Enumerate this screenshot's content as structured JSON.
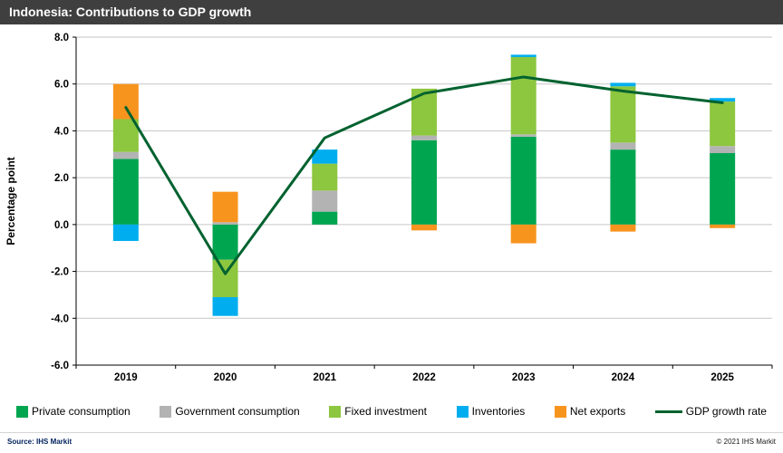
{
  "title_bar": {
    "title": "Indonesia: Contributions to GDP growth",
    "bg_color": "#3F3F3F",
    "text_color": "#FFFFFF"
  },
  "chart_data": {
    "type": "bar",
    "subtype": "stacked-bar-with-line",
    "title": "Indonesia: Contributions to GDP growth",
    "xlabel": "",
    "ylabel": "Percentage point",
    "ylim": [
      -6.0,
      8.0
    ],
    "ytick_step": 2.0,
    "ytick_labels": [
      "-6.0",
      "-4.0",
      "-2.0",
      "0.0",
      "2.0",
      "4.0",
      "6.0",
      "8.0"
    ],
    "grid": true,
    "legend_position": "bottom",
    "categories": [
      "2019",
      "2020",
      "2021",
      "2022",
      "2023",
      "2024",
      "2025"
    ],
    "series": [
      {
        "name": "Private consumption",
        "color": "#00A550",
        "values": [
          2.8,
          -1.5,
          0.55,
          3.6,
          3.75,
          3.2,
          3.05
        ]
      },
      {
        "name": "Government consumption",
        "color": "#B3B3B3",
        "values": [
          0.3,
          0.1,
          0.9,
          0.2,
          0.1,
          0.3,
          0.3
        ]
      },
      {
        "name": "Fixed investment",
        "color": "#8DC63F",
        "values": [
          1.4,
          -1.6,
          1.15,
          2.0,
          3.3,
          2.4,
          1.9
        ]
      },
      {
        "name": "Inventories",
        "color": "#00AEEF",
        "values": [
          -0.7,
          -0.8,
          0.6,
          0.0,
          0.1,
          0.15,
          0.15
        ]
      },
      {
        "name": "Net exports",
        "color": "#F7941E",
        "values": [
          1.5,
          1.3,
          0.0,
          -0.25,
          -0.8,
          -0.3,
          -0.15
        ]
      }
    ],
    "line_series": {
      "name": "GDP growth rate",
      "color": "#00622F",
      "values": [
        5.0,
        -2.1,
        3.7,
        5.6,
        6.3,
        5.7,
        5.2
      ]
    }
  },
  "footer": {
    "source": "Source: IHS Markit",
    "copyright": "© 2021  IHS Markit"
  }
}
